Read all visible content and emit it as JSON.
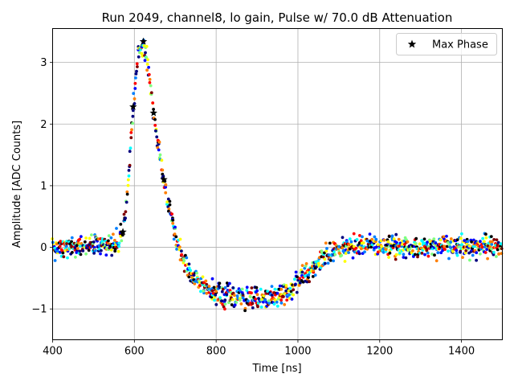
{
  "chart_data": {
    "type": "scatter",
    "title": "Run 2049, channel8, lo gain, Pulse w/ 70.0 dB Attenuation",
    "xlabel": "Time [ns]",
    "ylabel": "Amplitude [ADC Counts]",
    "xlim": [
      400,
      1500
    ],
    "ylim": [
      -1.5,
      3.55
    ],
    "xticks": [
      400,
      600,
      800,
      1000,
      1200,
      1400
    ],
    "yticks": [
      -1,
      0,
      1,
      2,
      3
    ],
    "grid": true,
    "legend_position": "top-right",
    "colormap": [
      "#00007f",
      "#0000ff",
      "#007fff",
      "#00ffff",
      "#7fff7f",
      "#ffff00",
      "#ff7f00",
      "#ff0000",
      "#7f0000",
      "#000000"
    ],
    "series": [
      {
        "name": "Max Phase",
        "marker": "star",
        "color": "#000000",
        "x": [
          572,
          597,
          622,
          647,
          672
        ],
        "y": [
          0.25,
          2.28,
          3.34,
          2.18,
          1.1
        ]
      }
    ],
    "pulse_profile": {
      "x": [
        400,
        560,
        572,
        585,
        597,
        610,
        622,
        635,
        647,
        660,
        672,
        685,
        700,
        720,
        740,
        760,
        780,
        800,
        850,
        900,
        950,
        985,
        1000,
        1020,
        1050,
        1080,
        1100,
        1150,
        1200,
        1300,
        1400,
        1500
      ],
      "y": [
        0.0,
        0.05,
        0.25,
        1.0,
        2.3,
        3.2,
        3.3,
        2.9,
        2.2,
        1.6,
        1.1,
        0.65,
        0.2,
        -0.2,
        -0.42,
        -0.55,
        -0.68,
        -0.75,
        -0.8,
        -0.82,
        -0.8,
        -0.72,
        -0.55,
        -0.4,
        -0.25,
        -0.1,
        -0.02,
        0.03,
        0.03,
        0.02,
        0.02,
        0.0
      ]
    },
    "noise_amplitude": 0.12
  }
}
